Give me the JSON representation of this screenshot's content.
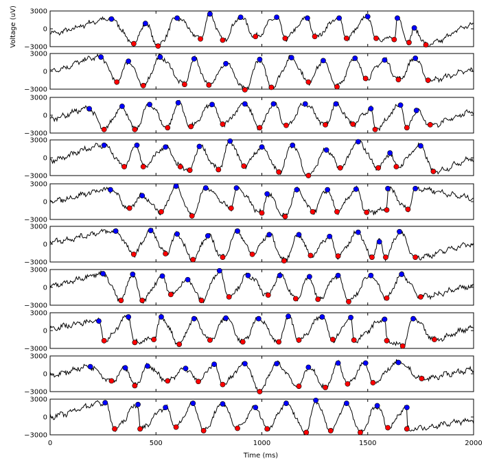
{
  "chart_data": {
    "type": "line",
    "title": "",
    "xlabel": "Time (ms)",
    "ylabel": "Voltage (uV)",
    "xlim": [
      0,
      2000
    ],
    "ylim": [
      -3000,
      3000
    ],
    "x_ticks": [
      0,
      500,
      1000,
      1500,
      2000
    ],
    "x_tick_labels": [
      "0",
      "500",
      "1000",
      "1500",
      "2000"
    ],
    "y_ticks": [
      3000,
      0,
      -3000
    ],
    "y_tick_labels": [
      "3000",
      "0",
      "−3000"
    ],
    "grid": false,
    "legend": "none",
    "colors": {
      "trace": "#000000",
      "peak": "#0000ff",
      "trough": "#ff0000"
    },
    "trials": [
      {
        "peaks": [
          [
            290,
            1650
          ],
          [
            450,
            900
          ],
          [
            600,
            1800
          ],
          [
            755,
            2500
          ],
          [
            900,
            1950
          ],
          [
            1070,
            1950
          ],
          [
            1215,
            1800
          ],
          [
            1365,
            1800
          ],
          [
            1500,
            2050
          ],
          [
            1640,
            1800
          ],
          [
            1720,
            150
          ]
        ],
        "troughs": [
          [
            395,
            -2500
          ],
          [
            510,
            -2900
          ],
          [
            710,
            -1700
          ],
          [
            815,
            -1900
          ],
          [
            970,
            -1300
          ],
          [
            1110,
            -1600
          ],
          [
            1250,
            -1300
          ],
          [
            1400,
            -1600
          ],
          [
            1540,
            -1600
          ],
          [
            1625,
            -1800
          ],
          [
            1695,
            -2300
          ],
          [
            1775,
            -2700
          ]
        ]
      },
      {
        "peaks": [
          [
            240,
            2400
          ],
          [
            370,
            1700
          ],
          [
            520,
            2400
          ],
          [
            680,
            2100
          ],
          [
            830,
            1300
          ],
          [
            990,
            2000
          ],
          [
            1140,
            2300
          ],
          [
            1290,
            1800
          ],
          [
            1440,
            2200
          ],
          [
            1580,
            1900
          ],
          [
            1725,
            2200
          ]
        ],
        "troughs": [
          [
            315,
            -1800
          ],
          [
            440,
            -2400
          ],
          [
            635,
            -2200
          ],
          [
            750,
            -2300
          ],
          [
            920,
            -3100
          ],
          [
            1045,
            -2700
          ],
          [
            1220,
            -1800
          ],
          [
            1355,
            -2600
          ],
          [
            1490,
            -1200
          ],
          [
            1645,
            -1400
          ],
          [
            1785,
            -1500
          ]
        ]
      },
      {
        "peaks": [
          [
            185,
            1100
          ],
          [
            340,
            1500
          ],
          [
            470,
            1800
          ],
          [
            605,
            2100
          ],
          [
            765,
            1800
          ],
          [
            920,
            1900
          ],
          [
            1055,
            1900
          ],
          [
            1205,
            1900
          ],
          [
            1350,
            1900
          ],
          [
            1515,
            1100
          ],
          [
            1655,
            1700
          ],
          [
            1730,
            800
          ]
        ],
        "troughs": [
          [
            255,
            -2400
          ],
          [
            400,
            -2400
          ],
          [
            555,
            -2100
          ],
          [
            665,
            -1900
          ],
          [
            815,
            -1500
          ],
          [
            990,
            -2100
          ],
          [
            1115,
            -1700
          ],
          [
            1300,
            -1600
          ],
          [
            1430,
            -1500
          ],
          [
            1535,
            -2400
          ],
          [
            1685,
            -2100
          ],
          [
            1795,
            -1600
          ]
        ]
      },
      {
        "peaks": [
          [
            255,
            2100
          ],
          [
            410,
            2100
          ],
          [
            545,
            1800
          ],
          [
            705,
            1900
          ],
          [
            850,
            2800
          ],
          [
            1000,
            1800
          ],
          [
            1145,
            2100
          ],
          [
            1305,
            1300
          ],
          [
            1455,
            2700
          ],
          [
            1605,
            800
          ],
          [
            1750,
            2000
          ]
        ],
        "troughs": [
          [
            350,
            -1500
          ],
          [
            440,
            -1500
          ],
          [
            615,
            -1500
          ],
          [
            660,
            -2100
          ],
          [
            795,
            -2000
          ],
          [
            915,
            -1400
          ],
          [
            1080,
            -2400
          ],
          [
            1220,
            -3000
          ],
          [
            1370,
            -1700
          ],
          [
            1550,
            -1700
          ],
          [
            1635,
            -1500
          ],
          [
            1810,
            -2300
          ]
        ]
      },
      {
        "peaks": [
          [
            285,
            2000
          ],
          [
            435,
            1000
          ],
          [
            595,
            2600
          ],
          [
            735,
            2300
          ],
          [
            880,
            2300
          ],
          [
            1025,
            1300
          ],
          [
            1165,
            2000
          ],
          [
            1310,
            2000
          ],
          [
            1445,
            2100
          ],
          [
            1595,
            2200
          ],
          [
            1725,
            2200
          ]
        ],
        "troughs": [
          [
            375,
            -1100
          ],
          [
            525,
            -1700
          ],
          [
            670,
            -2400
          ],
          [
            855,
            -1100
          ],
          [
            1000,
            -1900
          ],
          [
            1110,
            -2500
          ],
          [
            1240,
            -1700
          ],
          [
            1355,
            -1700
          ],
          [
            1495,
            -1800
          ],
          [
            1590,
            -1400
          ],
          [
            1690,
            -1300
          ]
        ]
      },
      {
        "peaks": [
          [
            310,
            2200
          ],
          [
            475,
            2300
          ],
          [
            600,
            1700
          ],
          [
            745,
            1400
          ],
          [
            885,
            2200
          ],
          [
            1035,
            1600
          ],
          [
            1175,
            1600
          ],
          [
            1320,
            1300
          ],
          [
            1455,
            2000
          ],
          [
            1555,
            400
          ],
          [
            1650,
            2100
          ]
        ],
        "troughs": [
          [
            395,
            -1700
          ],
          [
            545,
            -1600
          ],
          [
            675,
            -2600
          ],
          [
            815,
            -2200
          ],
          [
            955,
            -1700
          ],
          [
            1105,
            -2800
          ],
          [
            1230,
            -1900
          ],
          [
            1360,
            -2000
          ],
          [
            1520,
            -2200
          ],
          [
            1585,
            -2200
          ],
          [
            1725,
            -2200
          ]
        ]
      },
      {
        "peaks": [
          [
            250,
            2300
          ],
          [
            390,
            2200
          ],
          [
            530,
            1900
          ],
          [
            650,
            1300
          ],
          [
            800,
            2800
          ],
          [
            935,
            2000
          ],
          [
            1085,
            2000
          ],
          [
            1225,
            1800
          ],
          [
            1360,
            2000
          ],
          [
            1515,
            2000
          ],
          [
            1660,
            2200
          ]
        ],
        "troughs": [
          [
            335,
            -2200
          ],
          [
            435,
            -2200
          ],
          [
            570,
            -1200
          ],
          [
            715,
            -2200
          ],
          [
            845,
            -1600
          ],
          [
            1030,
            -1300
          ],
          [
            1160,
            -1900
          ],
          [
            1265,
            -2000
          ],
          [
            1410,
            -2400
          ],
          [
            1590,
            -1800
          ],
          [
            1750,
            -1600
          ]
        ]
      },
      {
        "peaks": [
          [
            230,
            1600
          ],
          [
            370,
            2300
          ],
          [
            525,
            2300
          ],
          [
            680,
            2000
          ],
          [
            830,
            2100
          ],
          [
            985,
            2000
          ],
          [
            1125,
            2400
          ],
          [
            1285,
            2300
          ],
          [
            1420,
            2200
          ],
          [
            1580,
            1900
          ],
          [
            1715,
            2000
          ]
        ],
        "troughs": [
          [
            255,
            -1700
          ],
          [
            400,
            -2000
          ],
          [
            490,
            -1500
          ],
          [
            610,
            -2300
          ],
          [
            755,
            -1600
          ],
          [
            910,
            -1900
          ],
          [
            1080,
            -1900
          ],
          [
            1175,
            -1600
          ],
          [
            1335,
            -1500
          ],
          [
            1435,
            -1600
          ],
          [
            1590,
            -1700
          ],
          [
            1665,
            -2600
          ],
          [
            1815,
            -1500
          ]
        ]
      },
      {
        "peaks": [
          [
            190,
            1200
          ],
          [
            355,
            1000
          ],
          [
            460,
            1300
          ],
          [
            640,
            900
          ],
          [
            775,
            1600
          ],
          [
            920,
            1700
          ],
          [
            1070,
            1700
          ],
          [
            1220,
            1100
          ],
          [
            1360,
            1800
          ],
          [
            1490,
            1800
          ],
          [
            1645,
            1900
          ]
        ],
        "troughs": [
          [
            290,
            -1200
          ],
          [
            400,
            -2000
          ],
          [
            555,
            -1200
          ],
          [
            700,
            -1300
          ],
          [
            815,
            -1800
          ],
          [
            990,
            -3000
          ],
          [
            1175,
            -2100
          ],
          [
            1300,
            -2300
          ],
          [
            1405,
            -1700
          ],
          [
            1525,
            -1500
          ],
          [
            1755,
            -800
          ]
        ]
      },
      {
        "peaks": [
          [
            260,
            2400
          ],
          [
            415,
            2100
          ],
          [
            545,
            1600
          ],
          [
            675,
            2300
          ],
          [
            815,
            2200
          ],
          [
            970,
            1600
          ],
          [
            1115,
            2300
          ],
          [
            1255,
            2800
          ],
          [
            1400,
            2300
          ],
          [
            1545,
            1900
          ],
          [
            1685,
            1600
          ]
        ],
        "troughs": [
          [
            305,
            -2000
          ],
          [
            425,
            -2000
          ],
          [
            595,
            -1700
          ],
          [
            725,
            -2300
          ],
          [
            885,
            -1900
          ],
          [
            1025,
            -2000
          ],
          [
            1210,
            -2600
          ],
          [
            1325,
            -2300
          ],
          [
            1465,
            -2600
          ],
          [
            1595,
            -1800
          ],
          [
            1685,
            -2000
          ]
        ]
      }
    ]
  }
}
